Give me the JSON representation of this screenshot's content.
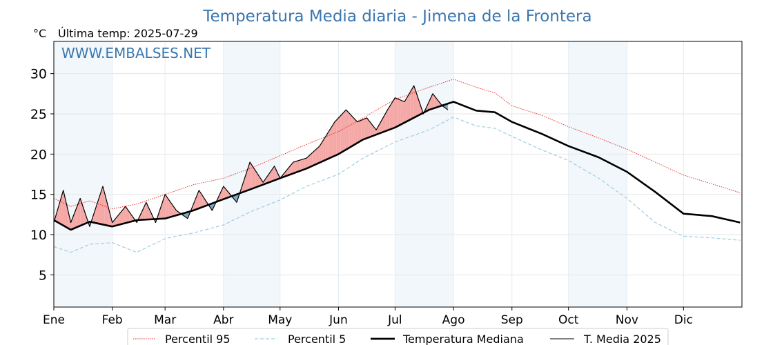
{
  "chart_data": {
    "type": "line",
    "title": "Temperatura Media diaria - Jimena de la Frontera",
    "unit": "°C",
    "last_update": "Última temp: 2025-07-29",
    "watermark": "WWW.EMBALSES.NET",
    "ylim": [
      1,
      34
    ],
    "yticks": [
      5,
      10,
      15,
      20,
      25,
      30
    ],
    "grid": true,
    "legend_position": "bottom",
    "months": [
      "Ene",
      "Feb",
      "Mar",
      "Abr",
      "May",
      "Jun",
      "Jul",
      "Ago",
      "Sep",
      "Oct",
      "Nov",
      "Dic"
    ],
    "month_start_days": [
      1,
      32,
      60,
      91,
      121,
      152,
      182,
      213,
      244,
      274,
      305,
      335
    ],
    "shaded_months": [
      "Ene",
      "Abr",
      "Jul",
      "Oct"
    ],
    "colors": {
      "title": "#3a76af",
      "p95": "#e8201a",
      "p5": "#9fcde0",
      "median": "#000000",
      "media2025": "#000000",
      "above_fill": "#f4a8a6",
      "below_fill": "#7ea6c8",
      "band": "#f2f7fb"
    },
    "series": [
      {
        "name": "Percentil 95",
        "style": "dotted",
        "x": [
          1,
          10,
          20,
          32,
          45,
          60,
          75,
          91,
          105,
          121,
          135,
          152,
          165,
          182,
          200,
          213,
          225,
          235,
          244,
          260,
          274,
          290,
          305,
          320,
          335,
          350,
          365
        ],
        "values": [
          14.5,
          13.5,
          14.2,
          13.2,
          13.8,
          15.0,
          16.2,
          17.0,
          18.2,
          19.8,
          21.2,
          22.8,
          24.5,
          26.8,
          28.3,
          29.3,
          28.3,
          27.6,
          26.0,
          24.8,
          23.4,
          22.0,
          20.6,
          19.0,
          17.4,
          16.3,
          15.2
        ]
      },
      {
        "name": "Percentil 5",
        "style": "dashed",
        "x": [
          1,
          10,
          20,
          32,
          45,
          60,
          75,
          91,
          105,
          121,
          135,
          152,
          165,
          182,
          200,
          213,
          225,
          235,
          244,
          260,
          274,
          290,
          305,
          320,
          335,
          350,
          365
        ],
        "values": [
          8.5,
          7.8,
          8.8,
          9.0,
          7.8,
          9.5,
          10.2,
          11.2,
          12.8,
          14.3,
          16.0,
          17.5,
          19.5,
          21.5,
          23.0,
          24.6,
          23.5,
          23.2,
          22.2,
          20.5,
          19.2,
          17.0,
          14.5,
          11.5,
          9.8,
          9.6,
          9.3
        ]
      },
      {
        "name": "Temperatura Mediana",
        "style": "solid-thick",
        "x": [
          1,
          10,
          20,
          32,
          45,
          60,
          75,
          91,
          105,
          121,
          135,
          152,
          165,
          182,
          200,
          213,
          225,
          235,
          244,
          260,
          274,
          290,
          305,
          320,
          335,
          350,
          365
        ],
        "values": [
          11.8,
          10.6,
          11.6,
          11.0,
          11.8,
          12.0,
          13.0,
          14.4,
          15.6,
          17.0,
          18.2,
          20.0,
          21.8,
          23.3,
          25.5,
          26.5,
          25.4,
          25.2,
          24.0,
          22.5,
          21.0,
          19.6,
          17.8,
          15.3,
          12.6,
          12.3,
          11.5
        ]
      },
      {
        "name": "T. Media 2025",
        "style": "solid-thin",
        "x": [
          1,
          6,
          10,
          15,
          20,
          27,
          32,
          39,
          45,
          50,
          55,
          60,
          66,
          72,
          78,
          85,
          91,
          98,
          105,
          112,
          118,
          121,
          128,
          135,
          142,
          150,
          156,
          162,
          167,
          172,
          178,
          182,
          187,
          192,
          197,
          202,
          207,
          210
        ],
        "values": [
          11.5,
          15.5,
          11.5,
          14.5,
          11.0,
          16.0,
          11.5,
          13.5,
          11.5,
          14.0,
          11.5,
          15.0,
          13.0,
          12.0,
          15.5,
          13.0,
          16.0,
          14.0,
          19.0,
          16.5,
          18.5,
          17.0,
          19.0,
          19.5,
          21.0,
          24.0,
          25.5,
          24.0,
          24.5,
          23.0,
          25.5,
          27.0,
          26.5,
          28.5,
          25.0,
          27.5,
          26.0,
          25.5
        ]
      }
    ]
  }
}
